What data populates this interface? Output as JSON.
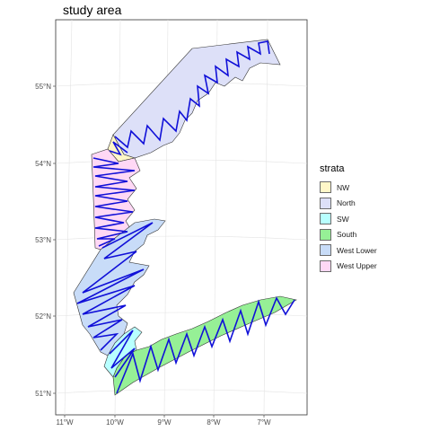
{
  "map": {
    "title": "study area",
    "x_ticks": [
      "11°W",
      "10°W",
      "9°W",
      "8°W",
      "7°W"
    ],
    "y_ticks": [
      "51°N",
      "52°N",
      "53°N",
      "54°N",
      "55°N"
    ],
    "transect_color": "#1010d8"
  },
  "legend": {
    "title": "strata",
    "items": [
      {
        "label": "NW",
        "color": "#fff7c8"
      },
      {
        "label": "North",
        "color": "#dde0f8"
      },
      {
        "label": "SW",
        "color": "#b8ffff"
      },
      {
        "label": "South",
        "color": "#96f096"
      },
      {
        "label": "West Lower",
        "color": "#c8dcf8"
      },
      {
        "label": "West Upper",
        "color": "#ffd8f5"
      }
    ]
  }
}
